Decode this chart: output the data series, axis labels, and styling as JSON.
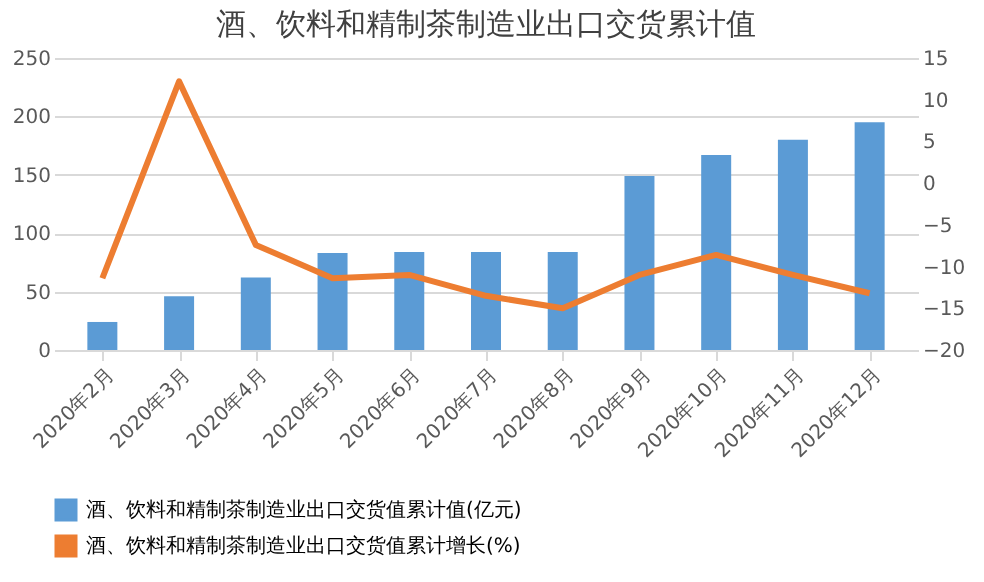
{
  "chart_data": {
    "type": "bar",
    "title": "酒、饮料和精制茶制造业出口交货累计值",
    "categories": [
      "2020年2月",
      "2020年3月",
      "2020年4月",
      "2020年5月",
      "2020年6月",
      "2020年7月",
      "2020年8月",
      "2020年9月",
      "2020年10月",
      "2020年11月",
      "2020年12月"
    ],
    "series": [
      {
        "name": "酒、饮料和精制茶制造业出口交货值累计值(亿元)",
        "color": "#5b9bd5",
        "values": [
          24,
          46,
          62,
          83,
          84,
          84,
          84,
          149,
          167,
          180,
          195
        ]
      },
      {
        "name": "酒、饮料和精制茶制造业出口交货值累计增长(%)",
        "type": "line",
        "axis": "y2",
        "color": "#ed7d31",
        "values": [
          -11.4,
          12.2,
          -7.4,
          -11.4,
          -11,
          -13.5,
          -15,
          -11,
          -8.6,
          -11,
          -13.2
        ]
      }
    ],
    "ylim": [
      0,
      250
    ],
    "yticks": [
      0,
      50,
      100,
      150,
      200,
      250
    ],
    "y2lim": [
      -20,
      15
    ],
    "y2ticks": [
      -20,
      -15,
      -10,
      -5,
      0,
      5,
      10,
      15
    ],
    "grid": "y",
    "legend": "bottom"
  }
}
